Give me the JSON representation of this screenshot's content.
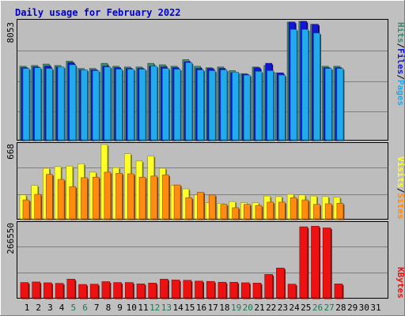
{
  "title": "Daily usage for February 2022",
  "colors": {
    "background": "#c0c0c0",
    "panel": "#bdbdbd",
    "title": "#0000cc",
    "hits": "#3e8a6e",
    "files": "#1515d6",
    "pages": "#22aaee",
    "visits": "#ffff2a",
    "sites": "#ff8c10",
    "kbytes": "#ee1111",
    "weekend_label": "#1a7a50",
    "weekday_label": "#000000"
  },
  "chart_data": [
    {
      "type": "bar",
      "title": "Daily usage for February 2022",
      "ylabel": "Pages / Files / Hits",
      "ymax_label": "8053",
      "ylim": [
        0,
        8053
      ],
      "categories": [
        "1",
        "2",
        "3",
        "4",
        "5",
        "6",
        "7",
        "8",
        "9",
        "10",
        "11",
        "12",
        "13",
        "14",
        "15",
        "16",
        "17",
        "18",
        "19",
        "20",
        "21",
        "22",
        "23",
        "24",
        "25",
        "26",
        "27",
        "28"
      ],
      "series": [
        {
          "name": "Hits",
          "values": [
            5000,
            5050,
            5150,
            5050,
            5350,
            4850,
            4850,
            5200,
            5000,
            4950,
            4950,
            5200,
            5100,
            5000,
            5450,
            5000,
            4900,
            4950,
            4700,
            4500,
            4950,
            5050,
            4550,
            8000,
            8050,
            7850,
            5000,
            5000
          ]
        },
        {
          "name": "Files",
          "values": [
            4900,
            4950,
            5000,
            4950,
            5250,
            4750,
            4750,
            5000,
            4900,
            4850,
            4850,
            5000,
            4950,
            4900,
            5300,
            4850,
            4850,
            4850,
            4550,
            4450,
            4900,
            5200,
            4550,
            8000,
            8050,
            7850,
            4900,
            4900
          ]
        },
        {
          "name": "Pages",
          "values": [
            4850,
            4900,
            4850,
            4950,
            5100,
            4750,
            4700,
            4950,
            4800,
            4800,
            4800,
            5000,
            4850,
            4800,
            5250,
            4750,
            4700,
            4750,
            4600,
            4400,
            4650,
            4700,
            4400,
            7500,
            7500,
            7250,
            4850,
            4850
          ]
        }
      ]
    },
    {
      "type": "bar",
      "ylabel": "Sites / Visits",
      "ymax_label": "668",
      "ylim": [
        0,
        668
      ],
      "categories": [
        "1",
        "2",
        "3",
        "4",
        "5",
        "6",
        "7",
        "8",
        "9",
        "10",
        "11",
        "12",
        "13",
        "14",
        "15",
        "16",
        "17",
        "18",
        "19",
        "20",
        "21",
        "22",
        "23",
        "24",
        "25",
        "26",
        "27",
        "28"
      ],
      "series": [
        {
          "name": "Visits",
          "values": [
            215,
            300,
            455,
            470,
            475,
            495,
            420,
            668,
            460,
            585,
            520,
            565,
            455,
            300,
            270,
            215,
            145,
            140,
            155,
            145,
            145,
            205,
            200,
            220,
            215,
            205,
            200,
            195
          ]
        },
        {
          "name": "Sites",
          "values": [
            170,
            220,
            400,
            355,
            290,
            370,
            375,
            420,
            410,
            405,
            375,
            385,
            395,
            305,
            190,
            240,
            215,
            130,
            100,
            130,
            120,
            150,
            150,
            190,
            170,
            130,
            135,
            140
          ]
        }
      ]
    },
    {
      "type": "bar",
      "ylabel": "KBytes",
      "ymax_label": "266550",
      "ylim": [
        0,
        266550
      ],
      "categories": [
        "1",
        "2",
        "3",
        "4",
        "5",
        "6",
        "7",
        "8",
        "9",
        "10",
        "11",
        "12",
        "13",
        "14",
        "15",
        "16",
        "17",
        "18",
        "19",
        "20",
        "21",
        "22",
        "23",
        "24",
        "25",
        "26",
        "27",
        "28"
      ],
      "series": [
        {
          "name": "KBytes",
          "values": [
            55000,
            57000,
            54000,
            52000,
            67000,
            48000,
            49000,
            58000,
            55000,
            55000,
            50000,
            53000,
            67000,
            64000,
            63000,
            60000,
            59000,
            56000,
            56000,
            54000,
            53000,
            84000,
            107000,
            49000,
            255000,
            257000,
            251000,
            50000
          ]
        }
      ]
    }
  ],
  "x_labels": [
    "1",
    "2",
    "3",
    "4",
    "5",
    "6",
    "7",
    "8",
    "9",
    "10",
    "11",
    "12",
    "13",
    "14",
    "15",
    "16",
    "17",
    "18",
    "19",
    "20",
    "21",
    "22",
    "23",
    "24",
    "25",
    "26",
    "27",
    "28",
    "29",
    "30",
    "31"
  ],
  "weekend_days": [
    "5",
    "6",
    "12",
    "13",
    "19",
    "20",
    "26",
    "27"
  ],
  "legend_top": [
    "Pages",
    "/",
    "Files",
    "/",
    "Hits"
  ],
  "legend_mid": [
    "Sites",
    "/",
    "Visits"
  ],
  "legend_bot": [
    "KBytes"
  ]
}
